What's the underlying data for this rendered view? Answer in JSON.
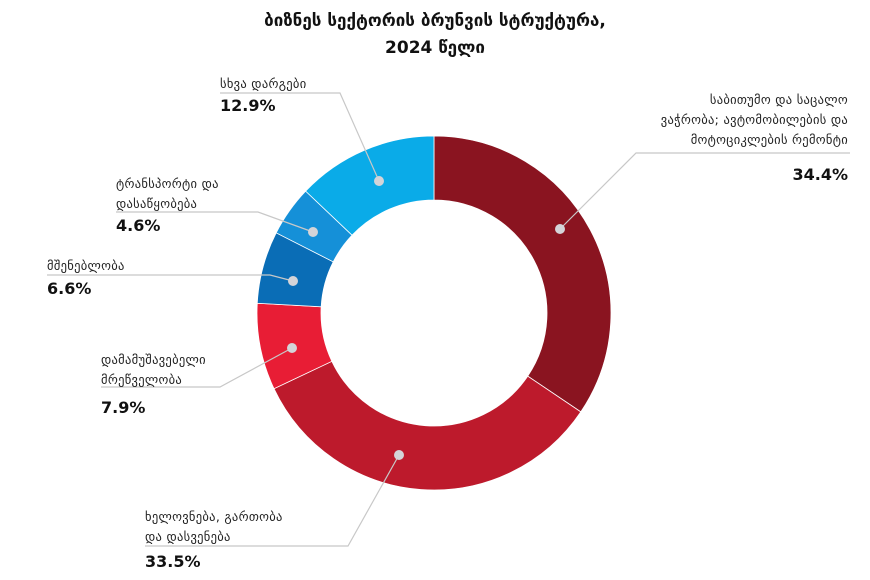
{
  "chart_data": {
    "type": "pie",
    "title_line1": "ბიზნეს სექტორის ბრუნვის სტრუქტურა,",
    "title_line2": "2024 წელი",
    "donut": true,
    "slices": [
      {
        "label": "საბითუმო და საცალო ვაჭრობა; ავტომობილების და მოტოციკლების რემონტი",
        "label_lines": [
          "საბითუმო და საცალო",
          "ვაჭრობა; ავტომობილების და",
          "მოტოციკლების რემონტი"
        ],
        "value": 34.4,
        "value_label": "34.4%",
        "color": "#8a1420"
      },
      {
        "label": "ხელოვნება, გართობა და დასვენება",
        "label_lines": [
          "ხელოვნება, გართობა",
          "და დასვენება"
        ],
        "value": 33.5,
        "value_label": "33.5%",
        "color": "#bd1a2c"
      },
      {
        "label": "დამამუშავებელი მრეწველობა",
        "label_lines": [
          "დამამუშავებელი",
          "მრეწველობა"
        ],
        "value": 7.9,
        "value_label": "7.9%",
        "color": "#e81d35"
      },
      {
        "label": "მშენებლობა",
        "label_lines": [
          "მშენებლობა"
        ],
        "value": 6.6,
        "value_label": "6.6%",
        "color": "#0a6db6"
      },
      {
        "label": "ტრანსპორტი და დასაწყობება",
        "label_lines": [
          "ტრანსპორტი და",
          "დასაწყობება"
        ],
        "value": 4.6,
        "value_label": "4.6%",
        "color": "#1590d8"
      },
      {
        "label": "სხვა დარგები",
        "label_lines": [
          "სხვა დარგები"
        ],
        "value": 12.9,
        "value_label": "12.9%",
        "color": "#0aabe8"
      }
    ]
  }
}
